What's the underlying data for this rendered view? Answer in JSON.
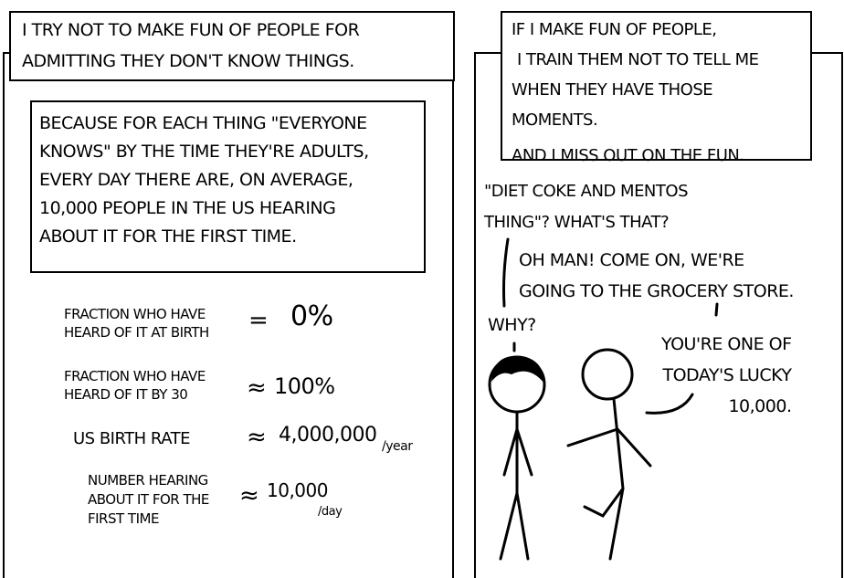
{
  "panel1": {
    "caption": [
      "I TRY NOT TO MAKE FUN OF PEOPLE FOR",
      "ADMITTING THEY DON'T KNOW THINGS."
    ],
    "explanation": [
      "BECAUSE FOR EACH THING \"EVERYONE",
      "KNOWS\" BY THE TIME THEY'RE ADULTS,",
      "EVERY DAY THERE ARE, ON AVERAGE,",
      "10,000 PEOPLE IN THE US HEARING",
      "ABOUT IT FOR THE FIRST TIME."
    ],
    "equations": [
      {
        "label": "FRACTION WHO HAVE\nHEARD OF IT AT BIRTH",
        "op": "=",
        "value": "0%"
      },
      {
        "label": "FRACTION WHO HAVE\nHEARD OF IT BY 30",
        "op": "≈",
        "value": "100%"
      },
      {
        "label": "US BIRTH RATE",
        "op": "≈",
        "value": "4,000,000",
        "unit": "/year"
      },
      {
        "label": "NUMBER HEARING\nABOUT IT FOR THE\nFIRST TIME",
        "op": "≈",
        "value": "10,000",
        "unit": "/day"
      }
    ]
  },
  "panel2": {
    "caption": [
      "IF I MAKE FUN OF PEOPLE,",
      "I TRAIN THEM NOT TO TELL ME",
      "WHEN THEY HAVE THOSE MOMENTS.",
      "AND I MISS OUT ON THE FUN."
    ],
    "dialogue": {
      "line1": "\"DIET COKE AND MENTOS\nTHING\"? WHAT'S THAT?",
      "line2": "OH MAN! COME ON, WE'RE\nGOING TO THE GROCERY STORE.",
      "line3": "WHY?",
      "line4": "YOU'RE ONE OF\nTODAY'S LUCKY\n10,000."
    }
  }
}
